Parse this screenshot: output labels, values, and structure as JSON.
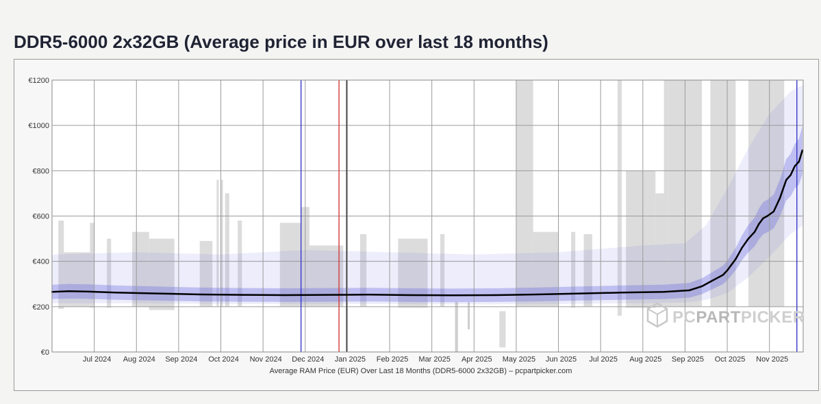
{
  "page": {
    "title": "DDR5-6000 2x32GB (Average price in EUR over last 18 months)"
  },
  "chart_data": {
    "type": "line",
    "title": "DDR5-6000 2x32GB (Average price in EUR over last 18 months)",
    "xlabel": "Average RAM Price (EUR) Over Last 18 Months (DDR5-6000 2x32GB) – pcpartpicker.com",
    "ylabel": "",
    "ylim": [
      0,
      1200
    ],
    "yticks": [
      {
        "value": 0,
        "label": "€0"
      },
      {
        "value": 200,
        "label": "€200"
      },
      {
        "value": 400,
        "label": "€400"
      },
      {
        "value": 600,
        "label": "€600"
      },
      {
        "value": 800,
        "label": "€800"
      },
      {
        "value": 1000,
        "label": "€1000"
      },
      {
        "value": 1200,
        "label": "€1200"
      }
    ],
    "xlim": [
      0,
      17.8
    ],
    "xticks": [
      {
        "value": 1.0,
        "label": "Jul 2024"
      },
      {
        "value": 2.0,
        "label": "Aug 2024"
      },
      {
        "value": 3.0,
        "label": "Sep 2024"
      },
      {
        "value": 4.0,
        "label": "Oct 2024"
      },
      {
        "value": 5.0,
        "label": "Nov 2024"
      },
      {
        "value": 6.0,
        "label": "Dec 2024"
      },
      {
        "value": 7.0,
        "label": "Jan 2025"
      },
      {
        "value": 8.0,
        "label": "Feb 2025"
      },
      {
        "value": 9.0,
        "label": "Mar 2025"
      },
      {
        "value": 10.0,
        "label": "Apr 2025"
      },
      {
        "value": 11.0,
        "label": "May 2025"
      },
      {
        "value": 12.0,
        "label": "Jun 2025"
      },
      {
        "value": 13.0,
        "label": "Jul 2025"
      },
      {
        "value": 14.0,
        "label": "Aug 2025"
      },
      {
        "value": 15.0,
        "label": "Sep 2025"
      },
      {
        "value": 16.0,
        "label": "Oct 2025"
      },
      {
        "value": 17.0,
        "label": "Nov 2025"
      }
    ],
    "series": [
      {
        "name": "Average price",
        "color": "#000000",
        "x": [
          0,
          0.4,
          0.8,
          1.5,
          2.5,
          3.5,
          4.5,
          5.5,
          6.5,
          7.5,
          8.5,
          9.5,
          10.5,
          11.5,
          12.5,
          13.5,
          14.5,
          15.1,
          15.4,
          15.6,
          15.8,
          15.9,
          16.0,
          16.2,
          16.35,
          16.5,
          16.65,
          16.75,
          16.85,
          16.95,
          17.1,
          17.25,
          17.4,
          17.5,
          17.6,
          17.7,
          17.78
        ],
        "values": [
          265,
          268,
          267,
          262,
          258,
          254,
          252,
          251,
          252,
          253,
          251,
          250,
          251,
          254,
          258,
          262,
          265,
          272,
          290,
          310,
          330,
          340,
          360,
          410,
          460,
          500,
          530,
          565,
          590,
          600,
          620,
          680,
          760,
          780,
          820,
          840,
          890
        ]
      }
    ],
    "reference_lines": [
      {
        "x": 5.9,
        "color": "#3636c8"
      },
      {
        "x": 6.8,
        "color": "#d23a3a"
      },
      {
        "x": 6.98,
        "color": "#333333"
      },
      {
        "x": 17.65,
        "color": "#3636c8"
      }
    ],
    "range_band": {
      "x": [
        0,
        2,
        4,
        6,
        8,
        10,
        12,
        14,
        15,
        15.5,
        16,
        16.5,
        17,
        17.5,
        17.8
      ],
      "low": [
        215,
        215,
        212,
        212,
        212,
        210,
        212,
        215,
        218,
        230,
        260,
        330,
        420,
        520,
        560
      ],
      "high": [
        430,
        440,
        430,
        450,
        440,
        430,
        440,
        470,
        480,
        560,
        720,
        900,
        1050,
        1150,
        1180
      ]
    },
    "gray_bars": [
      {
        "x0": 0.15,
        "x1": 0.28,
        "high": 580,
        "low": 190
      },
      {
        "x0": 0.28,
        "x1": 0.9,
        "high": 440,
        "low": 200
      },
      {
        "x0": 0.9,
        "x1": 1.0,
        "high": 570,
        "low": 195
      },
      {
        "x0": 1.3,
        "x1": 1.4,
        "high": 500,
        "low": 195
      },
      {
        "x0": 1.9,
        "x1": 2.3,
        "high": 530,
        "low": 200
      },
      {
        "x0": 2.3,
        "x1": 2.9,
        "high": 500,
        "low": 185
      },
      {
        "x0": 3.5,
        "x1": 3.8,
        "high": 490,
        "low": 200
      },
      {
        "x0": 3.9,
        "x1": 3.95,
        "high": 760,
        "low": 200
      },
      {
        "x0": 4.0,
        "x1": 4.05,
        "high": 760,
        "low": 200
      },
      {
        "x0": 4.1,
        "x1": 4.2,
        "high": 700,
        "low": 200
      },
      {
        "x0": 4.4,
        "x1": 4.5,
        "high": 580,
        "low": 200
      },
      {
        "x0": 5.4,
        "x1": 5.9,
        "high": 570,
        "low": 200
      },
      {
        "x0": 5.9,
        "x1": 6.1,
        "high": 640,
        "low": 200
      },
      {
        "x0": 6.1,
        "x1": 6.9,
        "high": 470,
        "low": 200
      },
      {
        "x0": 7.3,
        "x1": 7.45,
        "high": 520,
        "low": 200
      },
      {
        "x0": 8.2,
        "x1": 8.9,
        "high": 500,
        "low": 195
      },
      {
        "x0": 9.2,
        "x1": 9.3,
        "high": 520,
        "low": 200
      },
      {
        "x0": 10.6,
        "x1": 10.75,
        "high": 180,
        "low": 20
      },
      {
        "x0": 11.0,
        "x1": 11.4,
        "high": 1200,
        "low": 200
      },
      {
        "x0": 11.4,
        "x1": 12.0,
        "high": 530,
        "low": 200
      },
      {
        "x0": 12.3,
        "x1": 12.4,
        "high": 530,
        "low": 195
      },
      {
        "x0": 12.6,
        "x1": 12.8,
        "high": 520,
        "low": 200
      },
      {
        "x0": 13.4,
        "x1": 13.5,
        "high": 1200,
        "low": 160
      },
      {
        "x0": 13.6,
        "x1": 14.3,
        "high": 800,
        "low": 195
      },
      {
        "x0": 14.3,
        "x1": 14.5,
        "high": 700,
        "low": 200
      },
      {
        "x0": 14.5,
        "x1": 14.6,
        "high": 1200,
        "low": 200
      },
      {
        "x0": 14.6,
        "x1": 15.4,
        "high": 1200,
        "low": 200
      },
      {
        "x0": 15.6,
        "x1": 16.0,
        "high": 1200,
        "low": 200
      },
      {
        "x0": 16.0,
        "x1": 16.2,
        "high": 1200,
        "low": 200
      },
      {
        "x0": 16.5,
        "x1": 16.9,
        "high": 1200,
        "low": 200
      },
      {
        "x0": 16.9,
        "x1": 17.1,
        "high": 1200,
        "low": 200
      },
      {
        "x0": 17.1,
        "x1": 17.35,
        "high": 1200,
        "low": 200
      }
    ],
    "gray_spikes": [
      {
        "x0": 9.55,
        "x1": 9.62,
        "high": 220,
        "low": 0
      },
      {
        "x0": 9.85,
        "x1": 9.9,
        "high": 220,
        "low": 100
      }
    ],
    "watermark": "PCPARTPICKER",
    "watermark_parts": {
      "pc": "PC",
      "part": "PART",
      "picker": "PICKER"
    }
  },
  "colors": {
    "average_line": "#000000",
    "band": "#6a6ae0",
    "gray_bar": "#d6d6d6",
    "grid": "#9a9a9a"
  }
}
